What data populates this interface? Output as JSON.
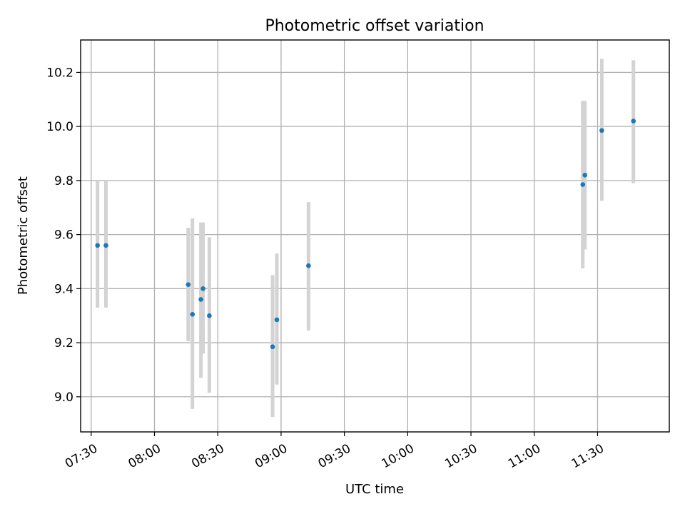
{
  "chart_data": {
    "type": "scatter",
    "title": "Photometric offset variation",
    "xlabel": "UTC time",
    "ylabel": "Photometric offset",
    "x_is_time": true,
    "xlim": [
      "07:25",
      "12:04"
    ],
    "ylim": [
      8.87,
      10.32
    ],
    "x_ticks": [
      "07:30",
      "08:00",
      "08:30",
      "09:00",
      "09:30",
      "10:00",
      "10:30",
      "11:00",
      "11:30"
    ],
    "y_ticks": [
      9.0,
      9.2,
      9.4,
      9.6,
      9.8,
      10.0,
      10.2
    ],
    "y_tick_labels": [
      "9.0",
      "9.2",
      "9.4",
      "9.6",
      "9.8",
      "10.0",
      "10.2"
    ],
    "grid": true,
    "point_color": "#1f77b4",
    "errorbar_color": "#d3d3d3",
    "series": [
      {
        "points": [
          {
            "x": "07:33",
            "y": 9.56,
            "ylo": 9.33,
            "yhi": 9.8
          },
          {
            "x": "07:37",
            "y": 9.56,
            "ylo": 9.33,
            "yhi": 9.8
          },
          {
            "x": "08:16",
            "y": 9.415,
            "ylo": 9.205,
            "yhi": 9.625
          },
          {
            "x": "08:18",
            "y": 9.305,
            "ylo": 8.955,
            "yhi": 9.66
          },
          {
            "x": "08:22",
            "y": 9.36,
            "ylo": 9.07,
            "yhi": 9.645
          },
          {
            "x": "08:23",
            "y": 9.4,
            "ylo": 9.16,
            "yhi": 9.645
          },
          {
            "x": "08:26",
            "y": 9.3,
            "ylo": 9.015,
            "yhi": 9.59
          },
          {
            "x": "08:56",
            "y": 9.185,
            "ylo": 8.925,
            "yhi": 9.45
          },
          {
            "x": "08:58",
            "y": 9.285,
            "ylo": 9.045,
            "yhi": 9.53
          },
          {
            "x": "09:13",
            "y": 9.485,
            "ylo": 9.245,
            "yhi": 9.72
          },
          {
            "x": "11:23",
            "y": 9.785,
            "ylo": 9.475,
            "yhi": 10.095
          },
          {
            "x": "11:24",
            "y": 9.82,
            "ylo": 9.545,
            "yhi": 10.095
          },
          {
            "x": "11:32",
            "y": 9.985,
            "ylo": 9.725,
            "yhi": 10.25
          },
          {
            "x": "11:47",
            "y": 10.02,
            "ylo": 9.79,
            "yhi": 10.245
          }
        ]
      }
    ]
  }
}
